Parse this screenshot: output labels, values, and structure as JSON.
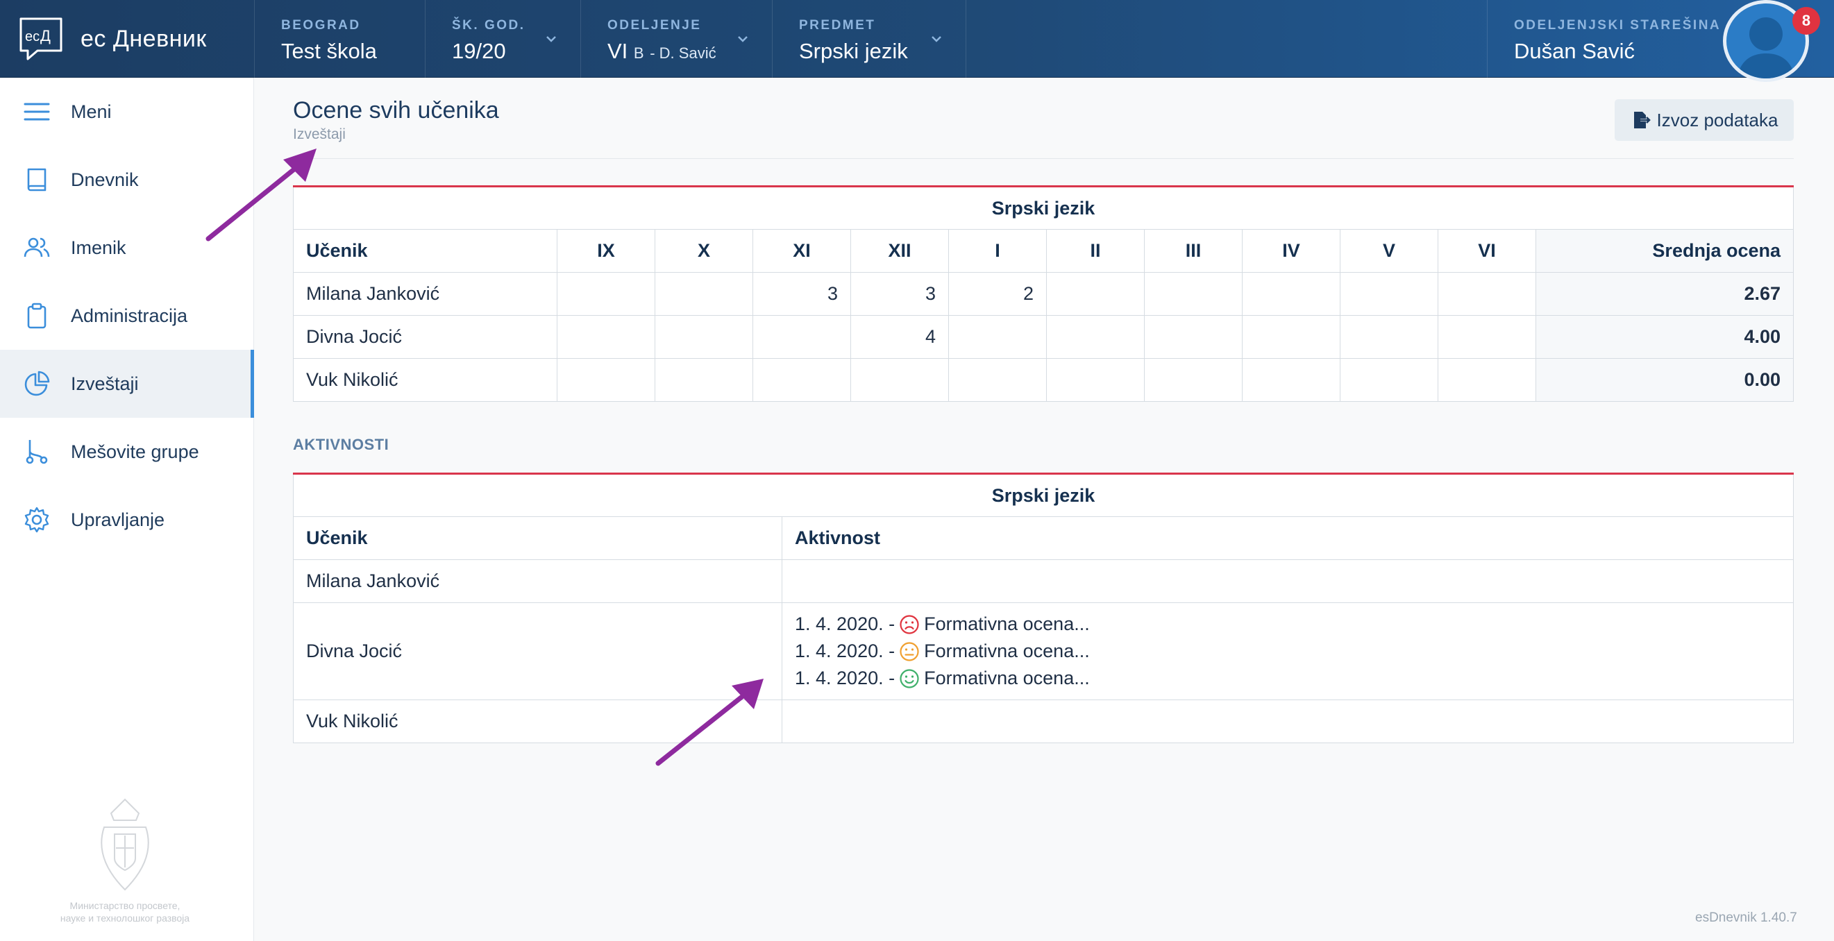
{
  "app": {
    "name": "ес Дневник"
  },
  "header": {
    "city_label": "BEOGRAD",
    "city_value": "Test škola",
    "year_label": "ŠK. GOD.",
    "year_value": "19/20",
    "class_label": "ODELJENJE",
    "class_value": "VI",
    "class_sub": "B",
    "class_teacher": "- D. Savić",
    "subject_label": "PREDMET",
    "subject_value": "Srpski jezik",
    "role_label": "ODELJENJSKI STAREŠINA",
    "user_name": "Dušan Savić",
    "notifications": "8"
  },
  "sidebar": {
    "items": [
      {
        "label": "Meni",
        "icon": "menu-icon"
      },
      {
        "label": "Dnevnik",
        "icon": "book-icon"
      },
      {
        "label": "Imenik",
        "icon": "users-icon"
      },
      {
        "label": "Administracija",
        "icon": "clipboard-icon"
      },
      {
        "label": "Izveštaji",
        "icon": "pie-chart-icon",
        "active": true
      },
      {
        "label": "Mešovite grupe",
        "icon": "git-branch-icon"
      },
      {
        "label": "Upravljanje",
        "icon": "gear-icon"
      }
    ],
    "ministry_line1": "Министарство просвете,",
    "ministry_line2": "науке и технолошког развоја"
  },
  "page": {
    "title": "Ocene svih učenika",
    "subtitle": "Izveštaji",
    "export_label": "Izvoz podataka",
    "version": "esDnevnik 1.40.7"
  },
  "grades_table": {
    "subject": "Srpski jezik",
    "headers": [
      "Učenik",
      "IX",
      "X",
      "XI",
      "XII",
      "I",
      "II",
      "III",
      "IV",
      "V",
      "VI",
      "Srednja ocena"
    ],
    "rows": [
      {
        "name": "Milana Janković",
        "cells": [
          "",
          "",
          "3",
          "3",
          "2",
          "",
          "",
          "",
          "",
          ""
        ],
        "avg": "2.67"
      },
      {
        "name": "Divna Jocić",
        "cells": [
          "",
          "",
          "",
          "4",
          "",
          "",
          "",
          "",
          "",
          ""
        ],
        "avg": "4.00"
      },
      {
        "name": "Vuk Nikolić",
        "cells": [
          "",
          "",
          "",
          "",
          "",
          "",
          "",
          "",
          "",
          ""
        ],
        "avg": "0.00"
      }
    ]
  },
  "activities": {
    "section_label": "AKTIVNOSTI",
    "subject": "Srpski jezik",
    "header_student": "Učenik",
    "header_activity": "Aktivnost",
    "rows": [
      {
        "name": "Milana Janković",
        "entries": []
      },
      {
        "name": "Divna Jocić",
        "entries": [
          {
            "date": "1. 4. 2020. -",
            "mood": "sad",
            "color": "#e0343f",
            "text": "Formativna ocena..."
          },
          {
            "date": "1. 4. 2020. -",
            "mood": "neutral",
            "color": "#f0a030",
            "text": "Formativna ocena..."
          },
          {
            "date": "1. 4. 2020. -",
            "mood": "happy",
            "color": "#3fb06a",
            "text": "Formativna ocena..."
          }
        ]
      },
      {
        "name": "Vuk Nikolić",
        "entries": []
      }
    ]
  },
  "colors": {
    "header": "#1f4a77",
    "accent": "#d9354b",
    "arrow": "#8e2a9e",
    "active": "#3b8edb"
  }
}
